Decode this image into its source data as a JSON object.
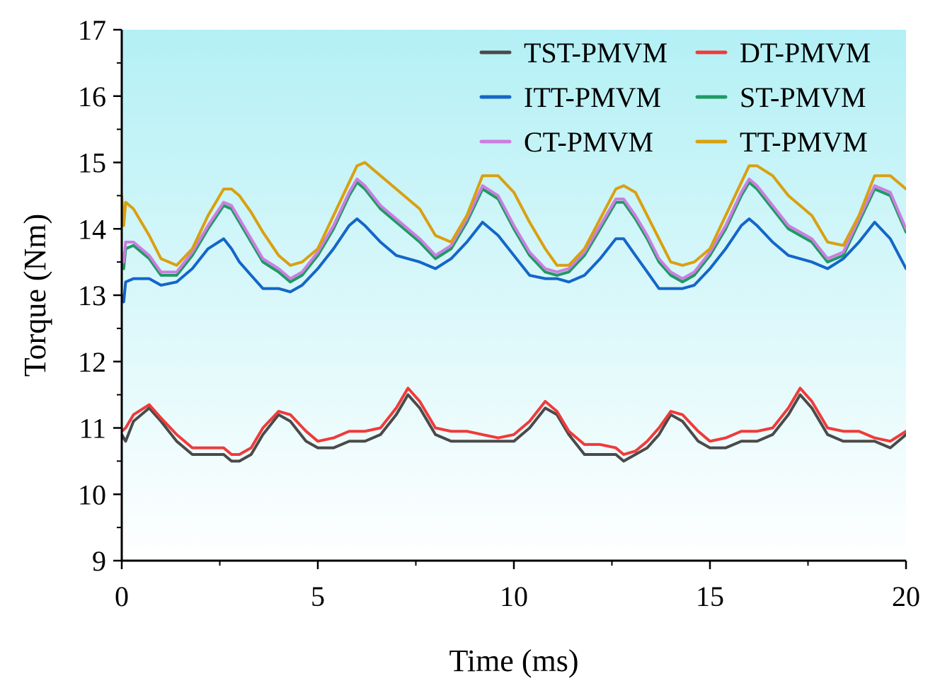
{
  "chart_data": {
    "type": "line",
    "xlabel": "Time (ms)",
    "ylabel": "Torque (Nm)",
    "xlim": [
      0,
      20
    ],
    "ylim": [
      9,
      17
    ],
    "xticks": [
      0,
      5,
      10,
      15,
      20
    ],
    "yticks": [
      9,
      10,
      11,
      12,
      13,
      14,
      15,
      16,
      17
    ],
    "xtick_labels": [
      "0",
      "5",
      "10",
      "15",
      "20"
    ],
    "ytick_labels": [
      "9",
      "10",
      "11",
      "12",
      "13",
      "14",
      "15",
      "16",
      "17"
    ],
    "background_gradient": [
      "#b3f0f5",
      "#ffffff"
    ],
    "legend_position": "top-right",
    "series": [
      {
        "name": "TST-PMVM",
        "color": "#4a4a4a",
        "x": [
          0,
          0.1,
          0.3,
          0.7,
          1.0,
          1.4,
          1.8,
          2.2,
          2.6,
          2.8,
          3.0,
          3.3,
          3.6,
          4.0,
          4.3,
          4.7,
          5.0,
          5.4,
          5.8,
          6.2,
          6.6,
          7.0,
          7.3,
          7.6,
          8.0,
          8.4,
          8.8,
          9.2,
          9.6,
          10.0,
          10.4,
          10.8,
          11.1,
          11.4,
          11.8,
          12.2,
          12.6,
          12.8,
          13.1,
          13.4,
          13.7,
          14.0,
          14.3,
          14.7,
          15.0,
          15.4,
          15.8,
          16.2,
          16.6,
          17.0,
          17.3,
          17.6,
          18.0,
          18.4,
          18.8,
          19.2,
          19.6,
          20.0
        ],
        "values": [
          10.9,
          10.8,
          11.1,
          11.3,
          11.1,
          10.8,
          10.6,
          10.6,
          10.6,
          10.5,
          10.5,
          10.6,
          10.9,
          11.2,
          11.1,
          10.8,
          10.7,
          10.7,
          10.8,
          10.8,
          10.9,
          11.2,
          11.5,
          11.3,
          10.9,
          10.8,
          10.8,
          10.8,
          10.8,
          10.8,
          11.0,
          11.3,
          11.2,
          10.9,
          10.6,
          10.6,
          10.6,
          10.5,
          10.6,
          10.7,
          10.9,
          11.2,
          11.1,
          10.8,
          10.7,
          10.7,
          10.8,
          10.8,
          10.9,
          11.2,
          11.5,
          11.3,
          10.9,
          10.8,
          10.8,
          10.8,
          10.7,
          10.9
        ]
      },
      {
        "name": "DT-PMVM",
        "color": "#ef3b3b",
        "x": [
          0,
          0.1,
          0.3,
          0.7,
          1.0,
          1.4,
          1.8,
          2.2,
          2.6,
          2.8,
          3.0,
          3.3,
          3.6,
          4.0,
          4.3,
          4.7,
          5.0,
          5.4,
          5.8,
          6.2,
          6.6,
          7.0,
          7.3,
          7.6,
          8.0,
          8.4,
          8.8,
          9.2,
          9.6,
          10.0,
          10.4,
          10.8,
          11.1,
          11.4,
          11.8,
          12.2,
          12.6,
          12.8,
          13.1,
          13.4,
          13.7,
          14.0,
          14.3,
          14.7,
          15.0,
          15.4,
          15.8,
          16.2,
          16.6,
          17.0,
          17.3,
          17.6,
          18.0,
          18.4,
          18.8,
          19.2,
          19.6,
          20.0
        ],
        "values": [
          10.95,
          11.0,
          11.2,
          11.35,
          11.15,
          10.9,
          10.7,
          10.7,
          10.7,
          10.6,
          10.6,
          10.7,
          11.0,
          11.25,
          11.2,
          10.95,
          10.8,
          10.85,
          10.95,
          10.95,
          11.0,
          11.3,
          11.6,
          11.4,
          11.0,
          10.95,
          10.95,
          10.9,
          10.85,
          10.9,
          11.1,
          11.4,
          11.25,
          10.95,
          10.75,
          10.75,
          10.7,
          10.6,
          10.65,
          10.8,
          11.0,
          11.25,
          11.2,
          10.95,
          10.8,
          10.85,
          10.95,
          10.95,
          11.0,
          11.3,
          11.6,
          11.4,
          11.0,
          10.95,
          10.95,
          10.85,
          10.8,
          10.95
        ]
      },
      {
        "name": "ITT-PMVM",
        "color": "#1466c8",
        "x": [
          0,
          0.05,
          0.1,
          0.3,
          0.7,
          1.0,
          1.4,
          1.8,
          2.2,
          2.6,
          2.8,
          3.0,
          3.3,
          3.6,
          4.0,
          4.3,
          4.6,
          5.0,
          5.4,
          5.8,
          6.0,
          6.2,
          6.6,
          7.0,
          7.3,
          7.6,
          8.0,
          8.4,
          8.8,
          9.2,
          9.6,
          10.0,
          10.4,
          10.8,
          11.1,
          11.4,
          11.8,
          12.2,
          12.6,
          12.8,
          13.1,
          13.4,
          13.7,
          14.0,
          14.3,
          14.6,
          15.0,
          15.4,
          15.8,
          16.0,
          16.2,
          16.6,
          17.0,
          17.3,
          17.6,
          18.0,
          18.4,
          18.8,
          19.2,
          19.6,
          20.0
        ],
        "values": [
          13.0,
          12.9,
          13.2,
          13.25,
          13.25,
          13.15,
          13.2,
          13.4,
          13.7,
          13.85,
          13.7,
          13.5,
          13.3,
          13.1,
          13.1,
          13.05,
          13.15,
          13.4,
          13.7,
          14.05,
          14.15,
          14.05,
          13.8,
          13.6,
          13.55,
          13.5,
          13.4,
          13.55,
          13.8,
          14.1,
          13.9,
          13.6,
          13.3,
          13.25,
          13.25,
          13.2,
          13.3,
          13.55,
          13.85,
          13.85,
          13.6,
          13.35,
          13.1,
          13.1,
          13.1,
          13.15,
          13.4,
          13.7,
          14.05,
          14.15,
          14.05,
          13.8,
          13.6,
          13.55,
          13.5,
          13.4,
          13.55,
          13.8,
          14.1,
          13.85,
          13.4
        ]
      },
      {
        "name": "ST-PMVM",
        "color": "#1f9a64",
        "x": [
          0,
          0.05,
          0.1,
          0.3,
          0.7,
          1.0,
          1.4,
          1.8,
          2.2,
          2.6,
          2.8,
          3.0,
          3.3,
          3.6,
          4.0,
          4.3,
          4.6,
          5.0,
          5.4,
          5.8,
          6.0,
          6.2,
          6.6,
          7.0,
          7.3,
          7.6,
          8.0,
          8.4,
          8.8,
          9.2,
          9.6,
          10.0,
          10.4,
          10.8,
          11.1,
          11.4,
          11.8,
          12.2,
          12.6,
          12.8,
          13.1,
          13.4,
          13.7,
          14.0,
          14.3,
          14.6,
          15.0,
          15.4,
          15.8,
          16.0,
          16.2,
          16.6,
          17.0,
          17.3,
          17.6,
          18.0,
          18.4,
          18.8,
          19.2,
          19.6,
          20.0
        ],
        "values": [
          13.6,
          13.4,
          13.7,
          13.75,
          13.55,
          13.3,
          13.3,
          13.6,
          14.0,
          14.35,
          14.3,
          14.1,
          13.8,
          13.5,
          13.35,
          13.2,
          13.3,
          13.6,
          14.0,
          14.5,
          14.7,
          14.6,
          14.3,
          14.1,
          13.95,
          13.8,
          13.55,
          13.7,
          14.1,
          14.6,
          14.45,
          14.0,
          13.6,
          13.35,
          13.3,
          13.35,
          13.6,
          14.0,
          14.4,
          14.4,
          14.15,
          13.85,
          13.5,
          13.3,
          13.2,
          13.3,
          13.6,
          14.0,
          14.5,
          14.7,
          14.6,
          14.3,
          14.0,
          13.9,
          13.8,
          13.5,
          13.6,
          14.1,
          14.6,
          14.5,
          13.95
        ]
      },
      {
        "name": "CT-PMVM",
        "color": "#cc7ee0",
        "x": [
          0,
          0.05,
          0.1,
          0.3,
          0.7,
          1.0,
          1.4,
          1.8,
          2.2,
          2.6,
          2.8,
          3.0,
          3.3,
          3.6,
          4.0,
          4.3,
          4.6,
          5.0,
          5.4,
          5.8,
          6.0,
          6.2,
          6.6,
          7.0,
          7.3,
          7.6,
          8.0,
          8.4,
          8.8,
          9.2,
          9.6,
          10.0,
          10.4,
          10.8,
          11.1,
          11.4,
          11.8,
          12.2,
          12.6,
          12.8,
          13.1,
          13.4,
          13.7,
          14.0,
          14.3,
          14.6,
          15.0,
          15.4,
          15.8,
          16.0,
          16.2,
          16.6,
          17.0,
          17.3,
          17.6,
          18.0,
          18.4,
          18.8,
          19.2,
          19.6,
          20.0
        ],
        "values": [
          13.65,
          13.5,
          13.8,
          13.8,
          13.6,
          13.35,
          13.35,
          13.65,
          14.05,
          14.4,
          14.35,
          14.15,
          13.85,
          13.55,
          13.4,
          13.25,
          13.35,
          13.65,
          14.05,
          14.55,
          14.75,
          14.65,
          14.35,
          14.15,
          14.0,
          13.85,
          13.6,
          13.75,
          14.15,
          14.65,
          14.5,
          14.05,
          13.65,
          13.4,
          13.35,
          13.4,
          13.65,
          14.05,
          14.45,
          14.45,
          14.2,
          13.9,
          13.55,
          13.35,
          13.25,
          13.35,
          13.65,
          14.05,
          14.55,
          14.75,
          14.65,
          14.35,
          14.05,
          13.95,
          13.85,
          13.55,
          13.65,
          14.15,
          14.65,
          14.55,
          14.0
        ]
      },
      {
        "name": "TT-PMVM",
        "color": "#d9a010",
        "x": [
          0,
          0.05,
          0.1,
          0.3,
          0.7,
          1.0,
          1.4,
          1.8,
          2.2,
          2.6,
          2.8,
          3.0,
          3.3,
          3.6,
          4.0,
          4.3,
          4.6,
          5.0,
          5.4,
          5.8,
          6.0,
          6.2,
          6.6,
          7.0,
          7.3,
          7.6,
          8.0,
          8.4,
          8.8,
          9.2,
          9.6,
          10.0,
          10.4,
          10.8,
          11.1,
          11.4,
          11.8,
          12.2,
          12.6,
          12.8,
          13.1,
          13.4,
          13.7,
          14.0,
          14.3,
          14.6,
          15.0,
          15.4,
          15.8,
          16.0,
          16.2,
          16.6,
          17.0,
          17.3,
          17.6,
          18.0,
          18.4,
          18.8,
          19.2,
          19.6,
          20.0
        ],
        "values": [
          14.5,
          14.05,
          14.4,
          14.3,
          13.9,
          13.55,
          13.45,
          13.7,
          14.2,
          14.6,
          14.6,
          14.5,
          14.25,
          13.95,
          13.6,
          13.45,
          13.5,
          13.7,
          14.2,
          14.7,
          14.95,
          15.0,
          14.8,
          14.6,
          14.45,
          14.3,
          13.9,
          13.8,
          14.2,
          14.8,
          14.8,
          14.55,
          14.1,
          13.7,
          13.45,
          13.45,
          13.7,
          14.15,
          14.6,
          14.65,
          14.55,
          14.2,
          13.85,
          13.5,
          13.45,
          13.5,
          13.7,
          14.2,
          14.7,
          14.95,
          14.95,
          14.8,
          14.5,
          14.35,
          14.2,
          13.8,
          13.75,
          14.2,
          14.8,
          14.8,
          14.6
        ]
      }
    ]
  }
}
